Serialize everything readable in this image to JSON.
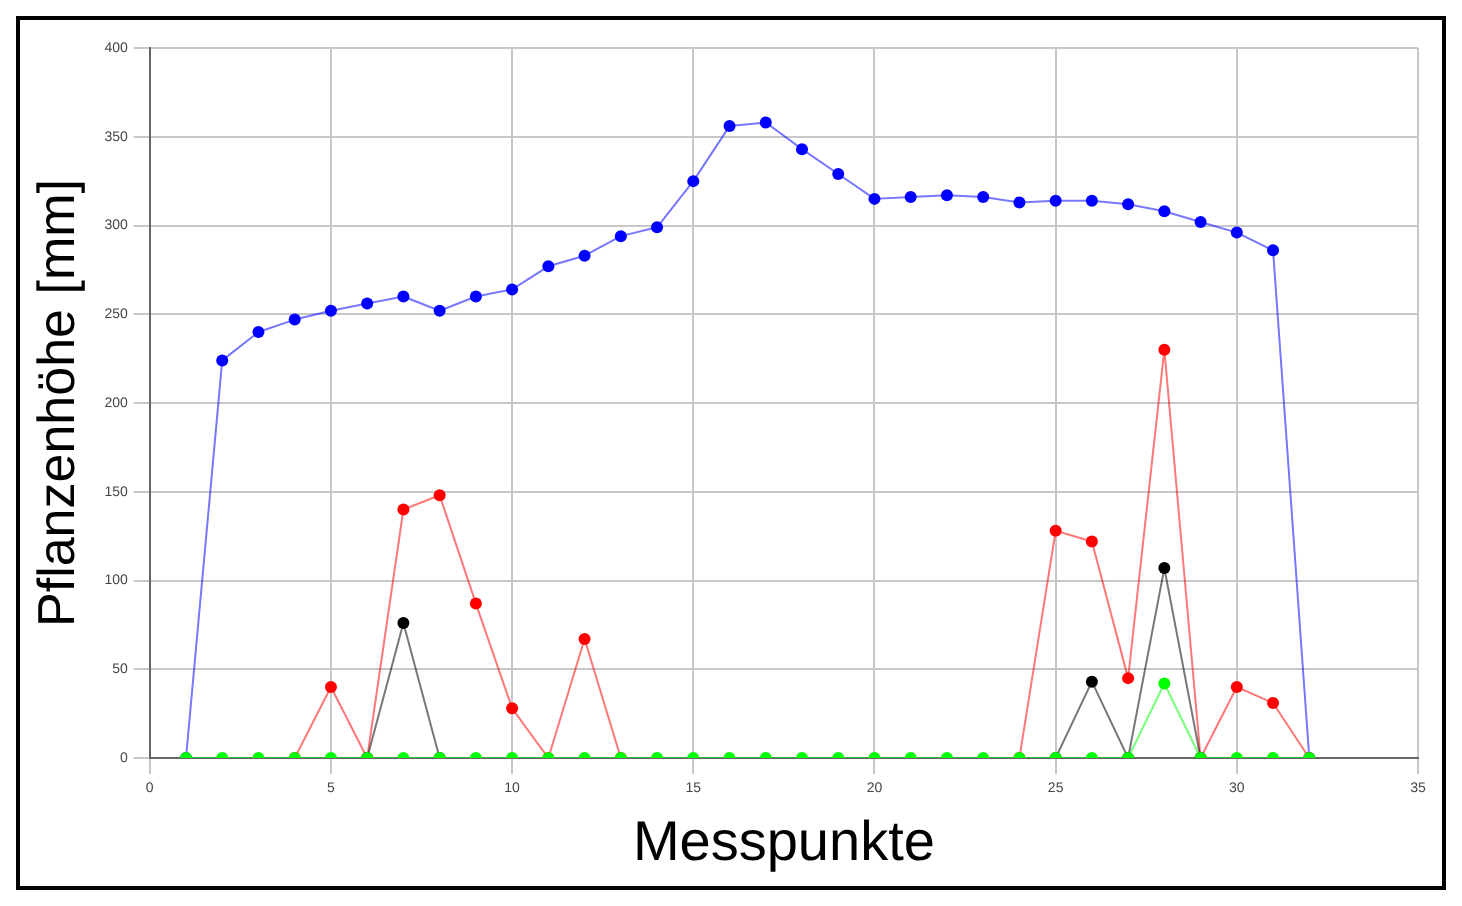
{
  "chart_data": {
    "type": "line",
    "xlabel": "Messpunkte",
    "ylabel": "Pflanzenhöhe [mm]",
    "x": [
      1,
      2,
      3,
      4,
      5,
      6,
      7,
      8,
      9,
      10,
      11,
      12,
      13,
      14,
      15,
      16,
      17,
      18,
      19,
      20,
      21,
      22,
      23,
      24,
      25,
      26,
      27,
      28,
      29,
      30,
      31,
      32
    ],
    "series": [
      {
        "color": "#0000ff",
        "values": [
          0,
          224,
          240,
          247,
          252,
          256,
          260,
          252,
          260,
          264,
          277,
          283,
          294,
          299,
          325,
          356,
          358,
          343,
          329,
          315,
          316,
          317,
          316,
          313,
          314,
          314,
          312,
          308,
          302,
          296,
          286,
          0
        ]
      },
      {
        "color": "#ff0000",
        "values": [
          null,
          null,
          null,
          0,
          40,
          0,
          140,
          148,
          87,
          28,
          0,
          67,
          0,
          null,
          null,
          null,
          null,
          null,
          null,
          null,
          null,
          null,
          null,
          0,
          128,
          122,
          45,
          230,
          0,
          40,
          31,
          0
        ]
      },
      {
        "color": "#000000",
        "values": [
          null,
          null,
          null,
          null,
          null,
          0,
          76,
          0,
          null,
          null,
          null,
          null,
          null,
          null,
          null,
          null,
          null,
          null,
          null,
          null,
          null,
          null,
          null,
          null,
          0,
          43,
          0,
          107,
          0,
          null,
          null,
          null
        ]
      },
      {
        "color": "#00ff00",
        "values": [
          0,
          0,
          0,
          0,
          0,
          0,
          0,
          0,
          0,
          0,
          0,
          0,
          0,
          0,
          0,
          0,
          0,
          0,
          0,
          0,
          0,
          0,
          0,
          0,
          0,
          0,
          0,
          42,
          0,
          0,
          0,
          0
        ]
      }
    ],
    "xlim": [
      0,
      35
    ],
    "xticks": [
      0,
      5,
      10,
      15,
      20,
      25,
      30,
      35
    ],
    "ylim": [
      0,
      400
    ],
    "yticks": [
      0,
      50,
      100,
      150,
      200,
      250,
      300,
      350,
      400
    ],
    "grid": true,
    "legend": false,
    "marker": "circle",
    "line_style": "solid"
  }
}
